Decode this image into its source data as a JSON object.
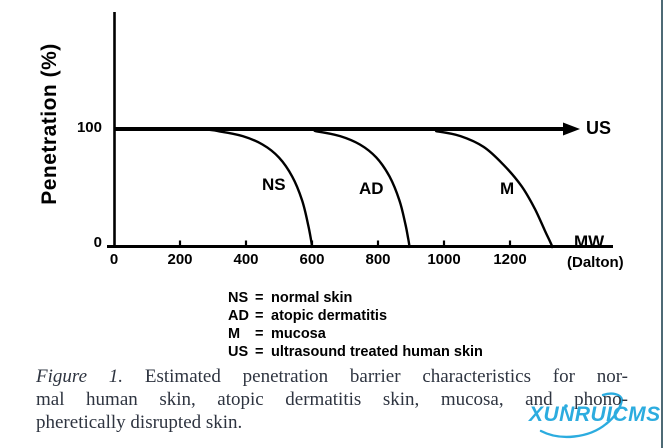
{
  "chart_data": {
    "type": "line",
    "title": "",
    "xlabel": "MW (Dalton)",
    "ylabel": "Penetration (%)",
    "xlim": [
      0,
      1400
    ],
    "ylim": [
      0,
      115
    ],
    "x_ticks": [
      0,
      200,
      400,
      600,
      800,
      1000,
      1200
    ],
    "y_ticks": [
      0,
      100
    ],
    "grid": false,
    "legend_position": "below-chart",
    "series": [
      {
        "name": "NS",
        "description": "normal skin",
        "style": "curve",
        "points": [
          [
            0,
            100
          ],
          [
            250,
            100
          ],
          [
            320,
            98
          ],
          [
            390,
            94
          ],
          [
            450,
            87
          ],
          [
            500,
            76
          ],
          [
            540,
            60
          ],
          [
            570,
            40
          ],
          [
            588,
            20
          ],
          [
            597,
            7
          ],
          [
            601,
            0
          ]
        ]
      },
      {
        "name": "AD",
        "description": "atopic dermatitis",
        "style": "curve",
        "points": [
          [
            0,
            100
          ],
          [
            540,
            100
          ],
          [
            615,
            98
          ],
          [
            685,
            94
          ],
          [
            745,
            87
          ],
          [
            795,
            76
          ],
          [
            835,
            60
          ],
          [
            865,
            40
          ],
          [
            883,
            20
          ],
          [
            892,
            7
          ],
          [
            896,
            0
          ]
        ]
      },
      {
        "name": "M",
        "description": "mucosa",
        "style": "curve",
        "points": [
          [
            0,
            100
          ],
          [
            900,
            100
          ],
          [
            980,
            98
          ],
          [
            1050,
            94
          ],
          [
            1120,
            85
          ],
          [
            1180,
            70
          ],
          [
            1235,
            52
          ],
          [
            1275,
            33
          ],
          [
            1305,
            15
          ],
          [
            1322,
            5
          ],
          [
            1330,
            0
          ]
        ]
      },
      {
        "name": "US",
        "description": "ultrasound treated human skin",
        "style": "arrow-constant",
        "points": [
          [
            0,
            100
          ],
          [
            1360,
            100
          ]
        ]
      }
    ]
  },
  "axis_labels": {
    "y_title": "Penetration (%)",
    "y_tick_top": "100",
    "y_tick_bottom": "0",
    "x_unit_top": "MW",
    "x_unit_bottom": "(Dalton)"
  },
  "curve_labels": {
    "ns": "NS",
    "ad": "AD",
    "m": "M",
    "us": "US"
  },
  "legend": {
    "items": [
      {
        "abbr": "NS",
        "eq": "=",
        "text": "normal skin"
      },
      {
        "abbr": "AD",
        "eq": "=",
        "text": "atopic dermatitis"
      },
      {
        "abbr": "M",
        "eq": "=",
        "text": "mucosa"
      },
      {
        "abbr": "US",
        "eq": "=",
        "text": "ultrasound treated human skin"
      }
    ]
  },
  "caption": {
    "label": "Figure 1.",
    "lines": [
      "Estimated penetration barrier characteristics for nor-",
      "mal human skin, atopic dermatitis skin, mucosa, and phono-",
      "pheretically disrupted skin."
    ]
  },
  "watermark": {
    "text": "XUNRUICMS"
  },
  "colors": {
    "ink": "#000000",
    "caption_text": "#2e3440",
    "right_border": "#4d6a75",
    "watermark": "#2cacdf"
  }
}
